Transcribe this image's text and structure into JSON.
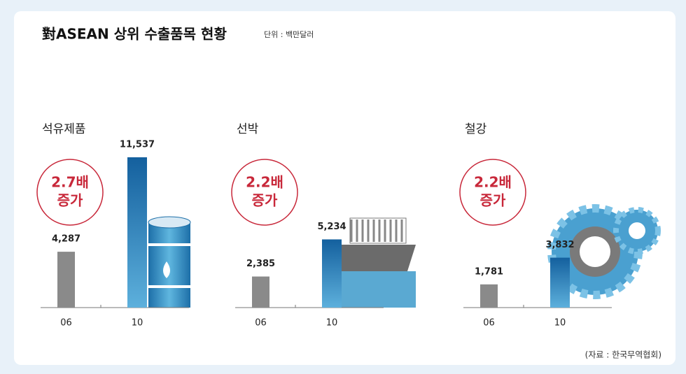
{
  "title": "對ASEAN 상위 수출품목 현황",
  "unit": "단위 : 백만달러",
  "source": "(자료 : 한국무역협회)",
  "chart_data": [
    {
      "type": "bar",
      "title": "석유제품",
      "categories": [
        "06",
        "10"
      ],
      "values": [
        4287,
        11537
      ],
      "value_labels": [
        "4,287",
        "11,537"
      ],
      "colors": [
        "#8a8a8a",
        "#1b6fae"
      ],
      "annotations": [
        "2.7배",
        "증가"
      ]
    },
    {
      "type": "bar",
      "title": "선박",
      "categories": [
        "06",
        "10"
      ],
      "values": [
        2385,
        5234
      ],
      "value_labels": [
        "2,385",
        "5,234"
      ],
      "colors": [
        "#8a8a8a",
        "#1b6fae"
      ],
      "annotations": [
        "2.2배",
        "증가"
      ]
    },
    {
      "type": "bar",
      "title": "철강",
      "categories": [
        "06",
        "10"
      ],
      "values": [
        1781,
        3832
      ],
      "value_labels": [
        "1,781",
        "3,832"
      ],
      "colors": [
        "#8a8a8a",
        "#1b6fae"
      ],
      "annotations": [
        "2.2배",
        "증가"
      ]
    }
  ]
}
